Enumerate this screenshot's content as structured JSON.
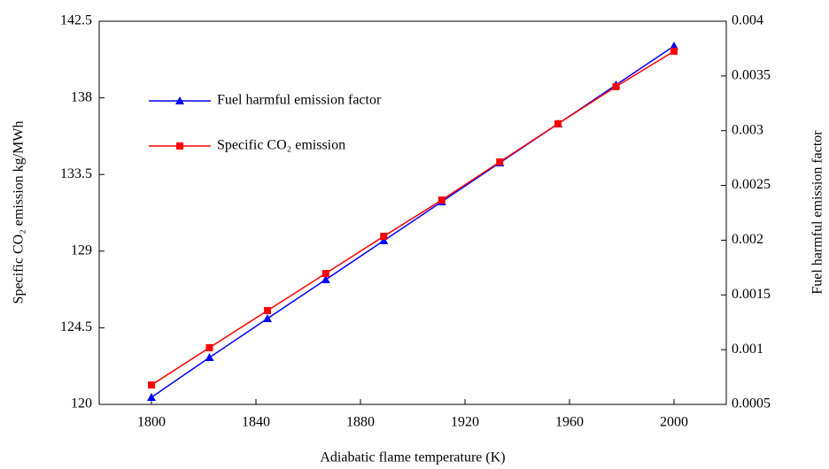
{
  "chart_data": {
    "type": "line",
    "xlabel": "Adiabatic flame temperature (K)",
    "ylabel": "Specific CO₂ emission kg/MWh",
    "y2label": "Fuel harmful emission factor",
    "x": [
      1800,
      1822.2,
      1844.4,
      1866.7,
      1888.9,
      1911.1,
      1933.3,
      1955.6,
      1977.8,
      2000
    ],
    "series": [
      {
        "name": "Fuel harmful emission factor",
        "color": "#0000ff",
        "marker": "triangle",
        "axis": "y2",
        "values": [
          0.000565,
          0.000928,
          0.001284,
          0.00164,
          0.001995,
          0.002351,
          0.002707,
          0.003062,
          0.003418,
          0.003774
        ]
      },
      {
        "name": "Specific CO₂ emission",
        "color": "#ff0000",
        "marker": "square",
        "axis": "y",
        "values": [
          121.14,
          123.33,
          125.51,
          127.69,
          129.87,
          132.0,
          134.24,
          136.48,
          138.66,
          140.74
        ]
      }
    ],
    "xlim": [
      1780,
      2020
    ],
    "xticks": [
      1800,
      1840,
      1880,
      1920,
      1960,
      2000
    ],
    "ylim": [
      120,
      142.5
    ],
    "yticks": [
      120,
      124.5,
      129,
      133.5,
      138,
      142.5
    ],
    "y2lim": [
      0.0005,
      0.004
    ],
    "y2ticks": [
      0.0005,
      0.001,
      0.0015,
      0.002,
      0.0025,
      0.003,
      0.0035,
      0.004
    ],
    "grid": false,
    "legend": "upper left"
  }
}
